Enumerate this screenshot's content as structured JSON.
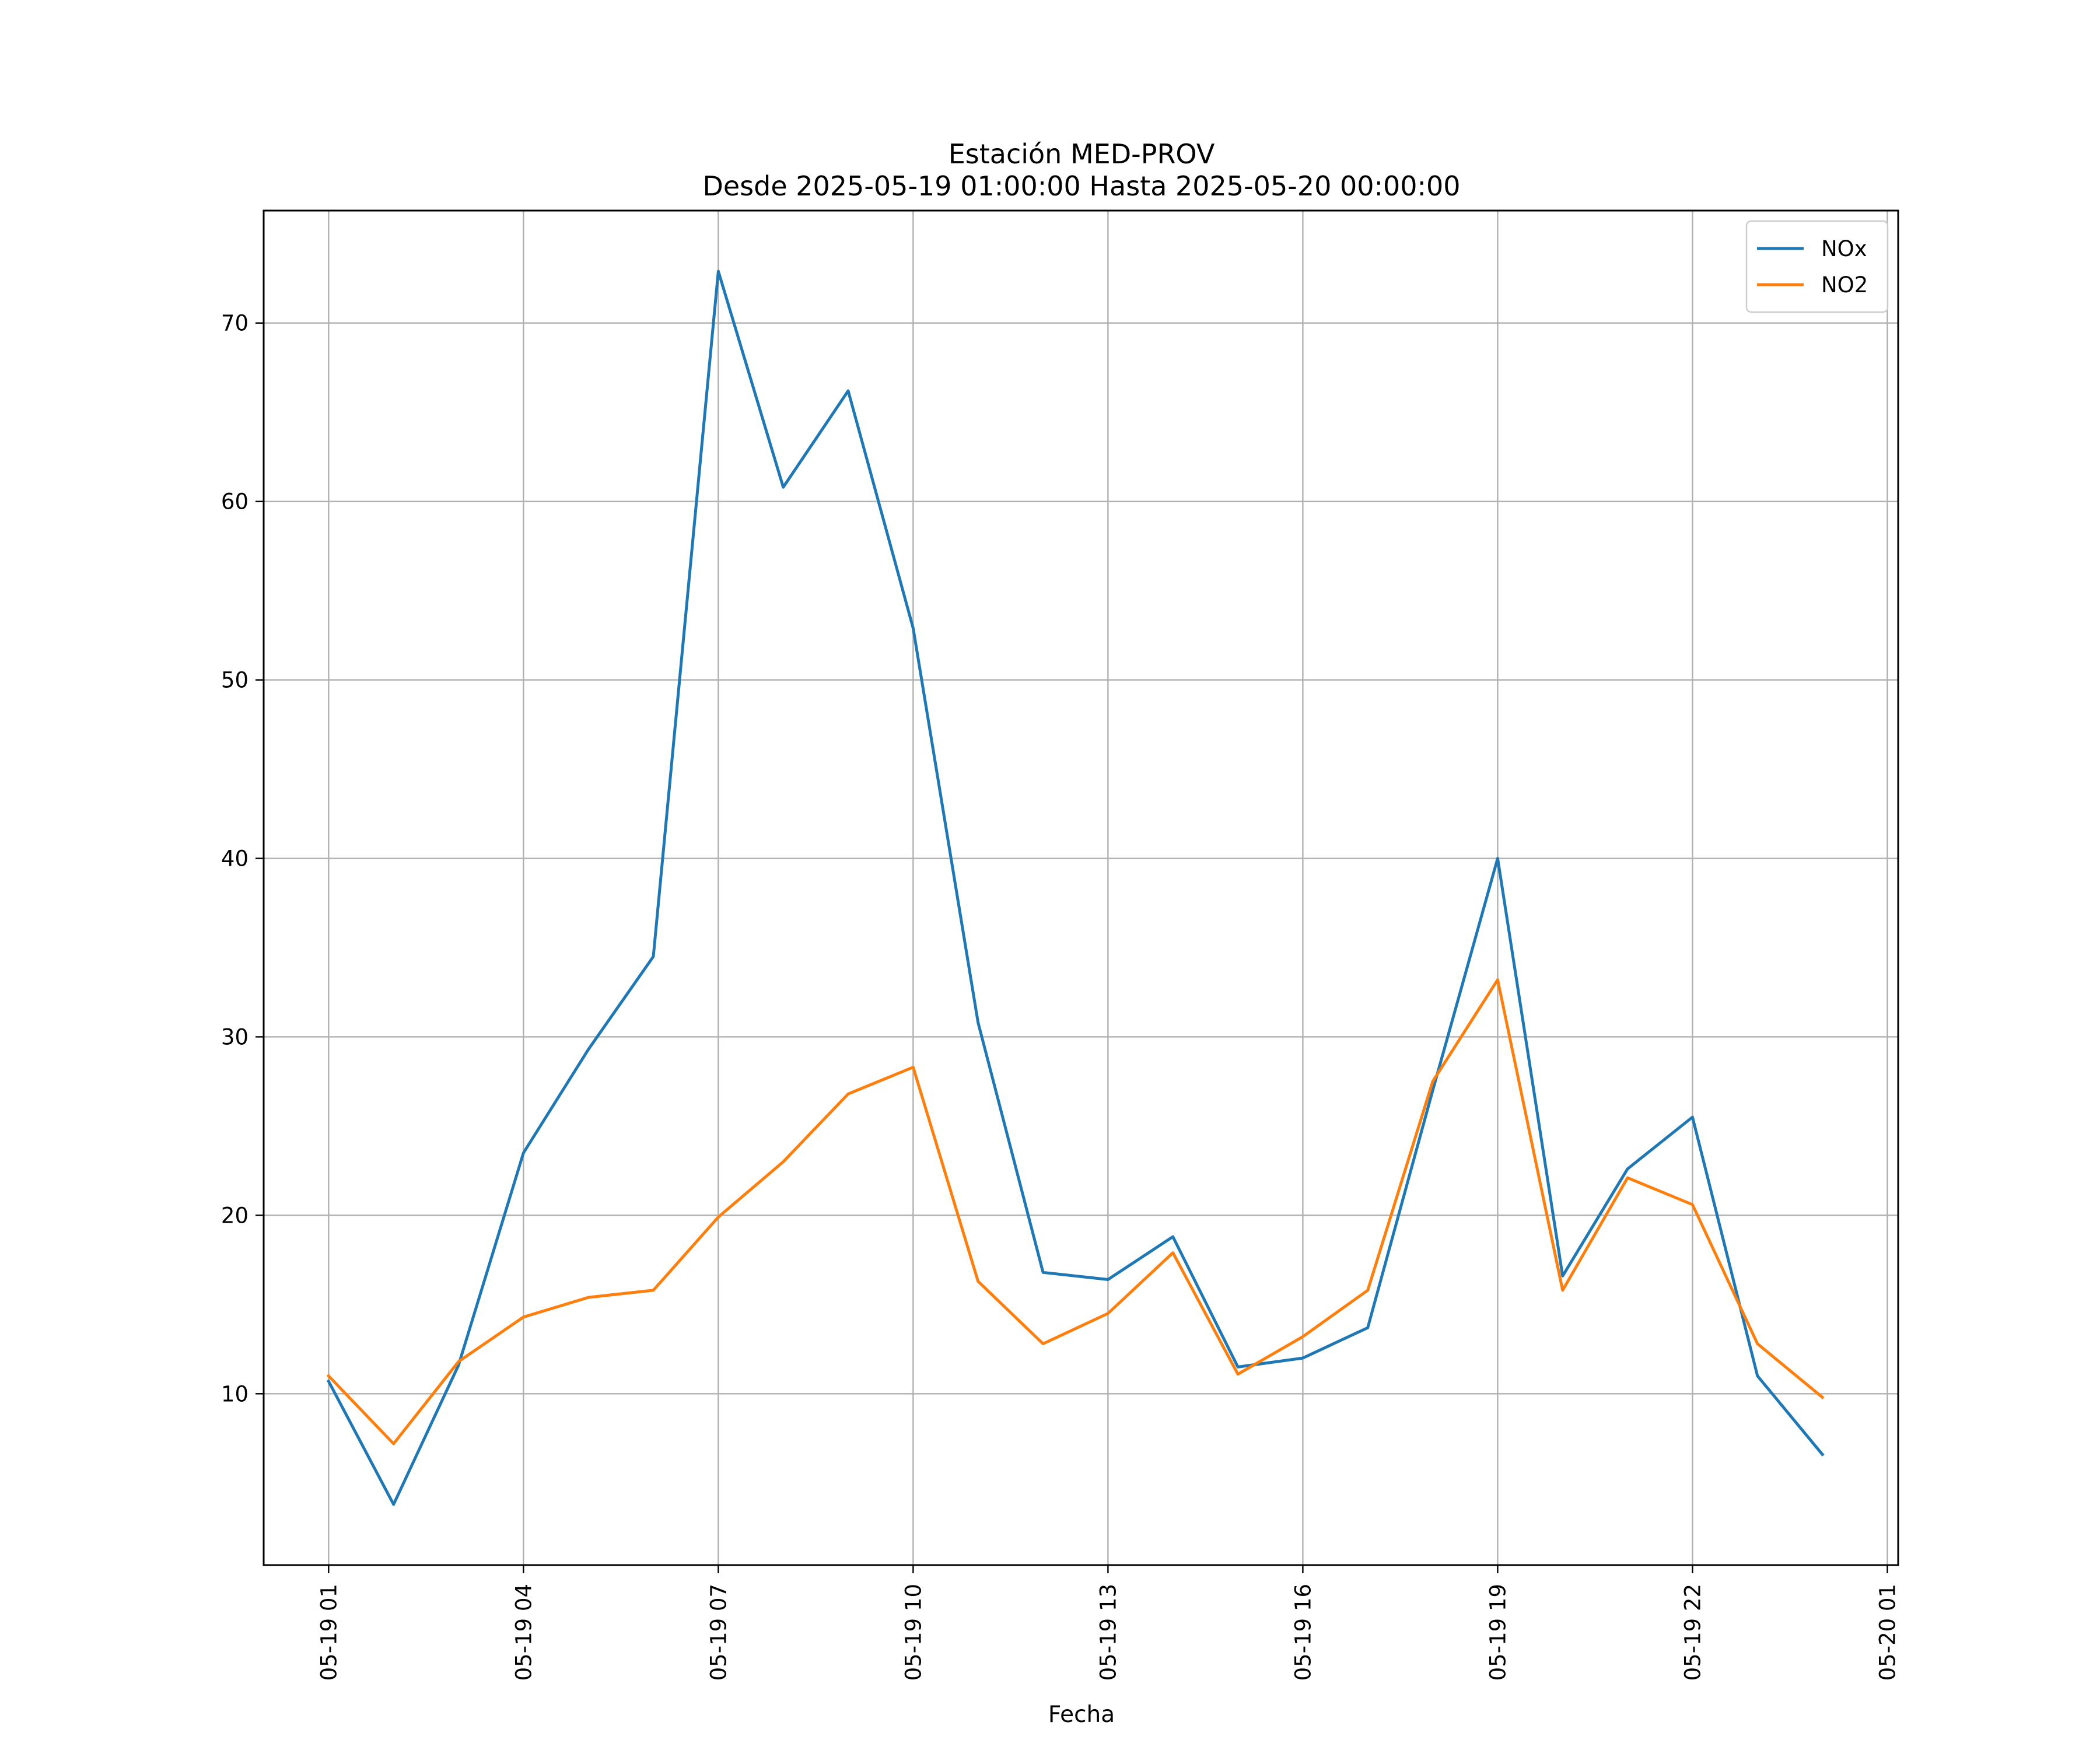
{
  "chart_data": {
    "type": "line",
    "title": "Estación MED-PROV",
    "subtitle": "Desde 2025-05-19 01:00:00 Hasta 2025-05-20 00:00:00",
    "xlabel": "Fecha",
    "ylabel": "",
    "x": [
      "2025-05-19 01:00",
      "2025-05-19 02:00",
      "2025-05-19 03:00",
      "2025-05-19 04:00",
      "2025-05-19 05:00",
      "2025-05-19 06:00",
      "2025-05-19 07:00",
      "2025-05-19 08:00",
      "2025-05-19 09:00",
      "2025-05-19 10:00",
      "2025-05-19 11:00",
      "2025-05-19 12:00",
      "2025-05-19 13:00",
      "2025-05-19 14:00",
      "2025-05-19 15:00",
      "2025-05-19 16:00",
      "2025-05-19 17:00",
      "2025-05-19 18:00",
      "2025-05-19 19:00",
      "2025-05-19 20:00",
      "2025-05-19 21:00",
      "2025-05-19 22:00",
      "2025-05-19 23:00",
      "2025-05-20 00:00"
    ],
    "xlim": [
      "2025-05-19 00:00",
      "2025-05-20 01:10"
    ],
    "xticks": [
      {
        "value": "2025-05-19 01:00",
        "label": "05-19 01"
      },
      {
        "value": "2025-05-19 04:00",
        "label": "05-19 04"
      },
      {
        "value": "2025-05-19 07:00",
        "label": "05-19 07"
      },
      {
        "value": "2025-05-19 10:00",
        "label": "05-19 10"
      },
      {
        "value": "2025-05-19 13:00",
        "label": "05-19 13"
      },
      {
        "value": "2025-05-19 16:00",
        "label": "05-19 16"
      },
      {
        "value": "2025-05-19 19:00",
        "label": "05-19 19"
      },
      {
        "value": "2025-05-19 22:00",
        "label": "05-19 22"
      },
      {
        "value": "2025-05-20 01:00",
        "label": "05-20 01"
      }
    ],
    "ylim": [
      0.4,
      76.3
    ],
    "yticks": [
      10,
      20,
      30,
      40,
      50,
      60,
      70
    ],
    "grid": true,
    "legend_position": "top-right",
    "series": [
      {
        "name": "NOx",
        "color": "#1f77b4",
        "values": [
          10.7,
          3.8,
          11.6,
          23.5,
          29.3,
          34.5,
          72.9,
          60.8,
          66.2,
          52.9,
          30.8,
          16.8,
          16.4,
          18.8,
          11.5,
          12.0,
          13.7,
          27.0,
          40.0,
          16.6,
          22.6,
          25.5,
          11.0,
          6.6
        ]
      },
      {
        "name": "NO2",
        "color": "#ff7f0e",
        "values": [
          11.0,
          7.2,
          11.8,
          14.3,
          15.4,
          15.8,
          19.9,
          23.0,
          26.8,
          28.3,
          16.3,
          12.8,
          14.5,
          17.9,
          11.1,
          13.2,
          15.8,
          27.5,
          33.2,
          15.8,
          22.1,
          20.6,
          12.8,
          9.8
        ]
      }
    ]
  }
}
